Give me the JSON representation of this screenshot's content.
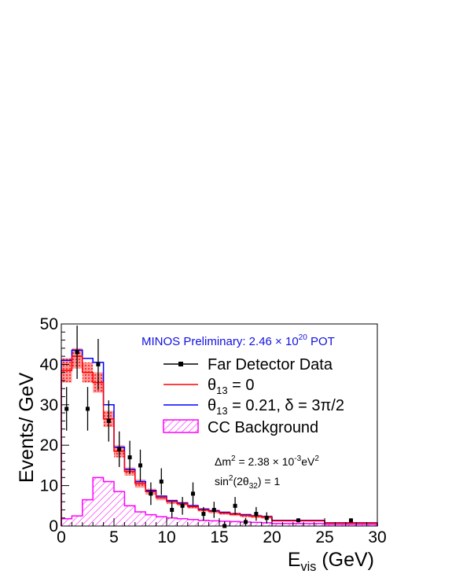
{
  "chart_data": {
    "type": "histogram",
    "title": "MINOS Preliminary: 2.46 × 10",
    "title_exp": "20",
    "title_suffix": " POT",
    "title_color": "#1010e0",
    "xlabel": {
      "main": "E",
      "sub": "vis",
      "rest": " (GeV)"
    },
    "ylabel": "Events/ GeV",
    "xlim": [
      0,
      30
    ],
    "ylim": [
      0,
      50
    ],
    "x_ticks": [
      0,
      5,
      10,
      15,
      20,
      25,
      30
    ],
    "y_ticks": [
      0,
      10,
      20,
      30,
      40,
      50
    ],
    "x_tick_labels": [
      "0",
      "5",
      "10",
      "15",
      "20",
      "25",
      "30"
    ],
    "y_tick_labels": [
      "0",
      "10",
      "20",
      "30",
      "40",
      "50"
    ],
    "grid": false,
    "legend_position": "top-right",
    "legend": [
      {
        "text": "Far Detector Data"
      },
      {
        "text": "θ",
        "sub": "13",
        "rest": " = 0"
      },
      {
        "text": "θ",
        "sub": "13",
        "rest": " = 0.21, δ = 3π/2"
      },
      {
        "text": "CC Background"
      }
    ],
    "annotations": {
      "line1": {
        "pre": "Δm",
        "sup": "2",
        "mid": " = 2.38 × 10",
        "sup2": "-3",
        "mid2": "eV",
        "sup3": "2"
      },
      "line2": {
        "pre": "sin",
        "sup": "2",
        "mid": "(2θ",
        "sub": "32",
        "post": ") = 1"
      }
    },
    "colors": {
      "data": "#000000",
      "theta13_zero": "#ff0000",
      "theta13_021": "#0000ff",
      "background": "#ff00ff",
      "band": "#ff6060"
    },
    "bin_edges": [
      0,
      1,
      2,
      3,
      4,
      5,
      6,
      7,
      8,
      9,
      10,
      11,
      12,
      13,
      14,
      15,
      16,
      17,
      18,
      19,
      20,
      25,
      30
    ],
    "series": [
      {
        "name": "θ13 = 0",
        "kind": "step",
        "values": [
          38.5,
          42,
          38,
          35.5,
          26.5,
          18.5,
          13.5,
          10.5,
          8.5,
          7,
          6,
          5.5,
          4.8,
          4,
          3.6,
          3.2,
          2.9,
          2.6,
          2.4,
          2.2,
          1.3,
          0.7
        ],
        "band_low": [
          35.5,
          39,
          35.5,
          33,
          24.5,
          17,
          12.5,
          9.5,
          7.8,
          6.4,
          5.5,
          5,
          4.3,
          3.6,
          3.2,
          2.8,
          2.5,
          2.2,
          2,
          1.8,
          1.1,
          0.5
        ],
        "band_high": [
          41.5,
          44,
          40.5,
          38,
          28.5,
          20,
          14.5,
          11.5,
          9.2,
          7.6,
          6.5,
          6,
          5.3,
          4.4,
          4,
          3.6,
          3.3,
          3,
          2.8,
          2.6,
          1.5,
          0.9
        ]
      },
      {
        "name": "θ13 = 0.21, δ = 3π/2",
        "kind": "step",
        "values": [
          41,
          43.5,
          41.5,
          40.5,
          30,
          19.5,
          14,
          11,
          8.8,
          7.4,
          6.3,
          5.7,
          5,
          4.2,
          3.8,
          3.4,
          3,
          2.8,
          2.5,
          2.3,
          1.4,
          0.8
        ]
      },
      {
        "name": "CC Background",
        "kind": "step-filled",
        "values": [
          1.8,
          2.5,
          6.5,
          12,
          11,
          8.5,
          5,
          3.5,
          2.8,
          2.3,
          2,
          1.8,
          1.6,
          1.4,
          1.3,
          1.2,
          1.1,
          1,
          0.9,
          0.8,
          0.6,
          0.4
        ]
      },
      {
        "name": "Far Detector Data",
        "kind": "points",
        "x": [
          0.5,
          1.5,
          2.5,
          3.5,
          4.5,
          5.5,
          6.5,
          7.5,
          8.5,
          9.5,
          10.5,
          11.5,
          12.5,
          13.5,
          14.5,
          15.5,
          16.5,
          17.5,
          18.5,
          19.5,
          22.5,
          27.5
        ],
        "y": [
          29,
          43,
          29,
          40,
          26,
          19,
          17,
          15,
          8,
          11,
          4,
          5,
          8,
          3,
          4,
          0,
          5,
          1,
          3,
          2,
          1.4,
          1.4
        ],
        "err": [
          5.4,
          6.6,
          5.4,
          6.3,
          5.1,
          4.4,
          4.1,
          3.9,
          2.8,
          3.3,
          2,
          2.2,
          2.8,
          1.7,
          2,
          1.1,
          2.2,
          1,
          1.7,
          1.4,
          0.5,
          0.5
        ]
      }
    ]
  }
}
